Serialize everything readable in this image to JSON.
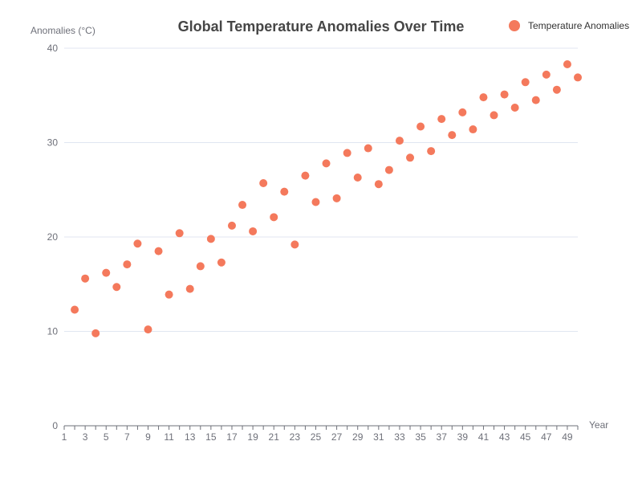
{
  "chart_data": {
    "type": "scatter",
    "title": "Global Temperature Anomalies Over Time",
    "xlabel": "Year",
    "ylabel": "Anomalies (°C)",
    "xlim": [
      1,
      50
    ],
    "ylim": [
      0,
      40
    ],
    "x_ticks": [
      "1",
      "3",
      "5",
      "7",
      "9",
      "11",
      "13",
      "15",
      "17",
      "19",
      "21",
      "23",
      "25",
      "27",
      "29",
      "31",
      "33",
      "35",
      "37",
      "39",
      "41",
      "43",
      "45",
      "47",
      "49"
    ],
    "y_ticks": [
      0,
      10,
      20,
      30,
      40
    ],
    "grid": true,
    "legend_position": "top-right",
    "series": [
      {
        "name": "Temperature Anomalies",
        "color": "#f4795c",
        "x": [
          2,
          3,
          4,
          5,
          6,
          7,
          8,
          9,
          10,
          11,
          12,
          13,
          14,
          15,
          16,
          17,
          18,
          19,
          20,
          21,
          22,
          23,
          24,
          25,
          26,
          27,
          28,
          29,
          30,
          31,
          32,
          33,
          34,
          35,
          36,
          37,
          38,
          39,
          40,
          41,
          42,
          43,
          44,
          45,
          46,
          47,
          48,
          49,
          50
        ],
        "y": [
          12.3,
          15.6,
          9.8,
          16.2,
          14.7,
          17.1,
          19.3,
          10.2,
          18.5,
          13.9,
          20.4,
          14.5,
          16.9,
          19.8,
          17.3,
          21.2,
          23.4,
          20.6,
          25.7,
          22.1,
          24.8,
          19.2,
          26.5,
          23.7,
          27.8,
          24.1,
          28.9,
          26.3,
          29.4,
          25.6,
          27.1,
          30.2,
          28.4,
          31.7,
          29.1,
          32.5,
          30.8,
          33.2,
          31.4,
          34.8,
          32.9,
          35.1,
          33.7,
          36.4,
          34.5,
          37.2,
          35.6,
          38.3,
          36.9
        ]
      }
    ]
  }
}
